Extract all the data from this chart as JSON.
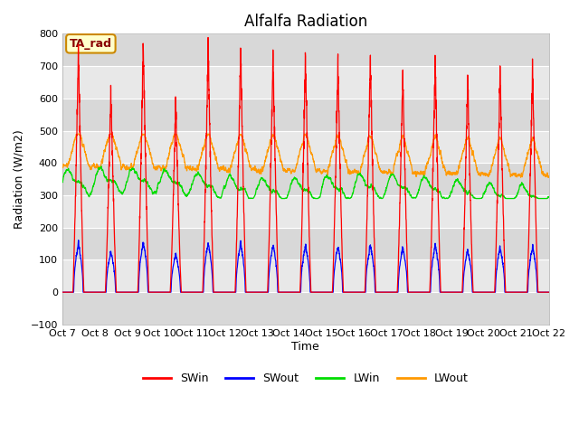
{
  "title": "Alfalfa Radiation",
  "xlabel": "Time",
  "ylabel": "Radiation (W/m2)",
  "ylim": [
    -100,
    800
  ],
  "yticks": [
    -100,
    0,
    100,
    200,
    300,
    400,
    500,
    600,
    700,
    800
  ],
  "x_tick_labels": [
    "Oct 7",
    "Oct 8",
    "Oct 9",
    "Oct 10",
    "Oct 11",
    "Oct 12",
    "Oct 13",
    "Oct 14",
    "Oct 15",
    "Oct 16",
    "Oct 17",
    "Oct 18",
    "Oct 19",
    "Oct 20",
    "Oct 21",
    "Oct 22"
  ],
  "title_fontsize": 12,
  "axis_label_fontsize": 9,
  "tick_fontsize": 8,
  "legend_fontsize": 9,
  "bg_color": "#ffffff",
  "plot_bg_color": "#ebebeb",
  "grid_color": "#ffffff",
  "band_colors": [
    "#d8d8d8",
    "#e8e8e8"
  ],
  "colors": {
    "SWin": "#ff0000",
    "SWout": "#0000ff",
    "LWin": "#00dd00",
    "LWout": "#ff9900"
  },
  "annotation_text": "TA_rad",
  "annotation_bg": "#ffffcc",
  "annotation_border": "#cc8800",
  "days": 15,
  "points_per_day": 288
}
